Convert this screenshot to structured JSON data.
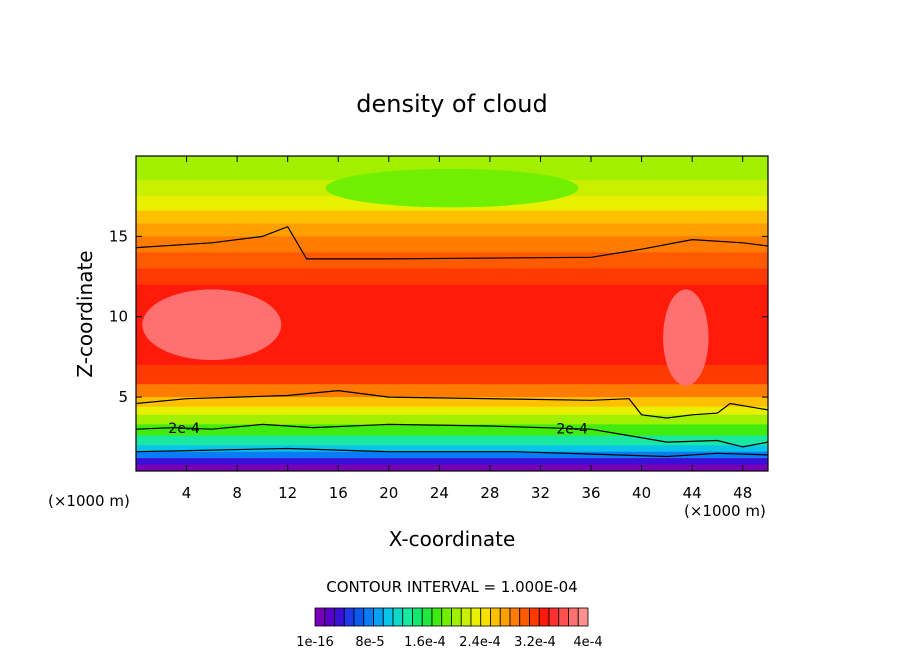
{
  "chart_data": {
    "type": "heatmap",
    "title": "density of cloud",
    "xlabel": "X-coordinate",
    "ylabel": "Z-coordinate",
    "x_unit_left": "(×1000 m)",
    "x_unit_right": "(×1000 m)",
    "xlim": [
      0,
      50
    ],
    "ylim": [
      0.4,
      20
    ],
    "x_ticks": [
      4,
      8,
      12,
      16,
      20,
      24,
      28,
      32,
      36,
      40,
      44,
      48
    ],
    "y_ticks": [
      5,
      10,
      15
    ],
    "contour_interval_text": "CONTOUR INTERVAL = 1.000E-04",
    "contour_labels": [
      "2e-4",
      "2e-4"
    ],
    "colorbar": {
      "tick_labels": [
        "1e-16",
        "8e-5",
        "1.6e-4",
        "2.4e-4",
        "3.2e-4",
        "4e-4"
      ],
      "colors": [
        "#7a00b8",
        "#5a00c8",
        "#3a10d8",
        "#1e3ae8",
        "#0a5af0",
        "#0a7cf4",
        "#08a0f0",
        "#08c4e8",
        "#10d8c8",
        "#18e8a0",
        "#10e870",
        "#20e840",
        "#40ec10",
        "#70f000",
        "#a0f000",
        "#c8f000",
        "#e8f000",
        "#f8e000",
        "#ffc000",
        "#ffa000",
        "#ff7c00",
        "#ff5a00",
        "#ff3a00",
        "#ff1a0a",
        "#ff3030",
        "#ff5050",
        "#ff7070",
        "#ff9090"
      ]
    },
    "bands": [
      {
        "z": 0.4,
        "color": "#7a00b8"
      },
      {
        "z": 0.8,
        "color": "#3a10d8"
      },
      {
        "z": 1.2,
        "color": "#0a7cf4"
      },
      {
        "z": 1.6,
        "color": "#08c4e8"
      },
      {
        "z": 2.0,
        "color": "#18e8a0"
      },
      {
        "z": 2.6,
        "color": "#40ec10"
      },
      {
        "z": 3.3,
        "color": "#a0f000"
      },
      {
        "z": 3.9,
        "color": "#e8f000"
      },
      {
        "z": 4.4,
        "color": "#ffc000"
      },
      {
        "z": 5.0,
        "color": "#ff7c00"
      },
      {
        "z": 5.8,
        "color": "#ff3a00"
      },
      {
        "z": 7.0,
        "color": "#ff1a0a"
      },
      {
        "z": 12.0,
        "color": "#ff3a00"
      },
      {
        "z": 13.0,
        "color": "#ff5a00"
      },
      {
        "z": 14.0,
        "color": "#ff7c00"
      },
      {
        "z": 15.0,
        "color": "#ffa000"
      },
      {
        "z": 15.8,
        "color": "#ffc000"
      },
      {
        "z": 16.6,
        "color": "#e8f000"
      },
      {
        "z": 17.5,
        "color": "#c8f000"
      },
      {
        "z": 18.5,
        "color": "#a0f000"
      }
    ],
    "blobs": [
      {
        "x": 6,
        "z": 9.5,
        "rx": 5.5,
        "rz": 2.2,
        "color": "#ff7070"
      },
      {
        "x": 43.5,
        "z": 8.7,
        "rx": 1.8,
        "rz": 3.0,
        "color": "#ff7070"
      },
      {
        "x": 25,
        "z": 18.0,
        "rx": 10,
        "rz": 1.2,
        "color": "#70f000"
      }
    ],
    "contour_lines": [
      {
        "label": "",
        "points": [
          [
            0,
            14.3
          ],
          [
            6,
            14.6
          ],
          [
            10,
            15.0
          ],
          [
            12,
            15.6
          ],
          [
            13.5,
            13.6
          ],
          [
            20,
            13.6
          ],
          [
            36,
            13.7
          ],
          [
            40,
            14.2
          ],
          [
            44,
            14.8
          ],
          [
            48,
            14.6
          ],
          [
            50,
            14.4
          ]
        ]
      },
      {
        "label": "",
        "points": [
          [
            0,
            4.6
          ],
          [
            4,
            4.9
          ],
          [
            8,
            5.0
          ],
          [
            12,
            5.1
          ],
          [
            16,
            5.4
          ],
          [
            20,
            5.0
          ],
          [
            36,
            4.8
          ],
          [
            39,
            4.9
          ],
          [
            40,
            3.9
          ],
          [
            42,
            3.7
          ],
          [
            44,
            3.9
          ],
          [
            46,
            4.0
          ],
          [
            47,
            4.6
          ],
          [
            50,
            4.2
          ]
        ]
      },
      {
        "label": "2e-4",
        "points": [
          [
            0,
            3.0
          ],
          [
            3,
            3.1
          ],
          [
            6,
            3.0
          ],
          [
            10,
            3.3
          ],
          [
            14,
            3.1
          ],
          [
            20,
            3.3
          ],
          [
            28,
            3.2
          ],
          [
            36,
            3.0
          ],
          [
            39,
            2.6
          ],
          [
            42,
            2.2
          ],
          [
            46,
            2.3
          ],
          [
            48,
            1.9
          ],
          [
            50,
            2.2
          ]
        ]
      },
      {
        "label": "",
        "points": [
          [
            0,
            1.6
          ],
          [
            6,
            1.7
          ],
          [
            12,
            1.8
          ],
          [
            20,
            1.6
          ],
          [
            30,
            1.6
          ],
          [
            38,
            1.4
          ],
          [
            42,
            1.3
          ],
          [
            46,
            1.5
          ],
          [
            50,
            1.4
          ]
        ]
      }
    ]
  }
}
